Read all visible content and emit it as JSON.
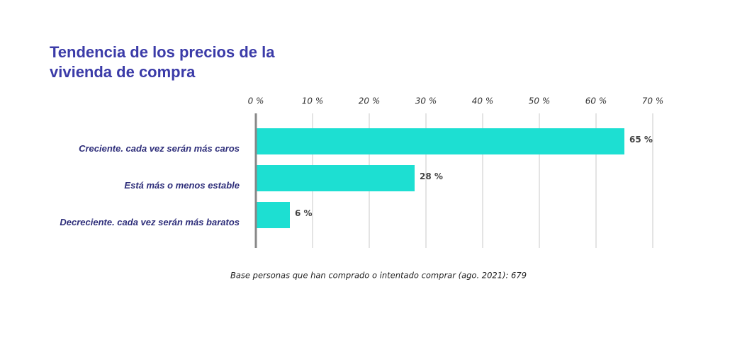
{
  "chart_data": {
    "type": "bar",
    "orientation": "horizontal",
    "title": "Tendencia de los precios de la vivienda de compra",
    "categories": [
      "Creciente. cada vez serán más caros",
      "Está más o menos estable",
      "Decreciente. cada vez serán más baratos"
    ],
    "values": [
      65,
      28,
      6
    ],
    "value_labels": [
      "65 %",
      "28 %",
      "6 %"
    ],
    "color": "#1ddfd2",
    "xlim": [
      0,
      70
    ],
    "xticks": [
      {
        "value": 0,
        "label": "0 %"
      },
      {
        "value": 10,
        "label": "10 %"
      },
      {
        "value": 20,
        "label": "20 %"
      },
      {
        "value": 30,
        "label": "30 %"
      },
      {
        "value": 40,
        "label": "40 %"
      },
      {
        "value": 50,
        "label": "50 %"
      },
      {
        "value": 60,
        "label": "60 %"
      },
      {
        "value": 70,
        "label": "70 %"
      }
    ],
    "grid": true,
    "note": "Base personas que han comprado o intentado comprar (ago. 2021): 679"
  }
}
